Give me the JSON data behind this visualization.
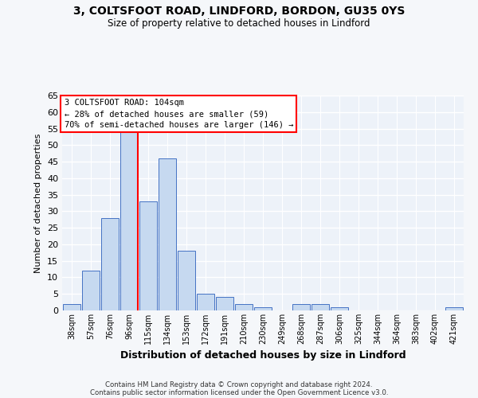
{
  "title1": "3, COLTSFOOT ROAD, LINDFORD, BORDON, GU35 0YS",
  "title2": "Size of property relative to detached houses in Lindford",
  "xlabel": "Distribution of detached houses by size in Lindford",
  "ylabel": "Number of detached properties",
  "categories": [
    "38sqm",
    "57sqm",
    "76sqm",
    "96sqm",
    "115sqm",
    "134sqm",
    "153sqm",
    "172sqm",
    "191sqm",
    "210sqm",
    "230sqm",
    "249sqm",
    "268sqm",
    "287sqm",
    "306sqm",
    "325sqm",
    "344sqm",
    "364sqm",
    "383sqm",
    "402sqm",
    "421sqm"
  ],
  "values": [
    2,
    12,
    28,
    54,
    33,
    46,
    18,
    5,
    4,
    2,
    1,
    0,
    2,
    2,
    1,
    0,
    0,
    0,
    0,
    0,
    1
  ],
  "bar_color": "#c6d9f0",
  "bar_edge_color": "#4472c4",
  "red_line_index": 3,
  "annotation_text": "3 COLTSFOOT ROAD: 104sqm\n← 28% of detached houses are smaller (59)\n70% of semi-detached houses are larger (146) →",
  "footer1": "Contains HM Land Registry data © Crown copyright and database right 2024.",
  "footer2": "Contains public sector information licensed under the Open Government Licence v3.0.",
  "ylim": [
    0,
    65
  ],
  "yticks": [
    0,
    5,
    10,
    15,
    20,
    25,
    30,
    35,
    40,
    45,
    50,
    55,
    60,
    65
  ],
  "bg_color": "#edf2f9",
  "grid_color": "#ffffff",
  "fig_bg": "#f5f7fa"
}
